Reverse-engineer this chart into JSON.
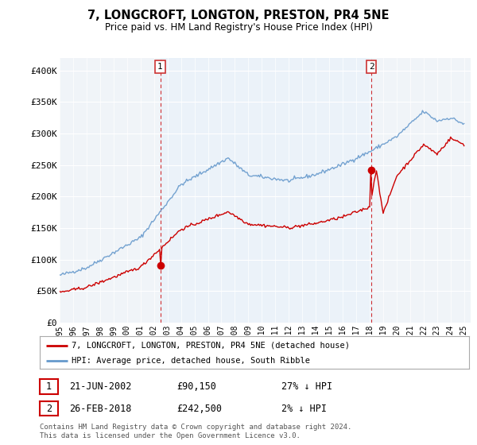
{
  "title": "7, LONGCROFT, LONGTON, PRESTON, PR4 5NE",
  "subtitle": "Price paid vs. HM Land Registry's House Price Index (HPI)",
  "ylim": [
    0,
    420000
  ],
  "yticks": [
    0,
    50000,
    100000,
    150000,
    200000,
    250000,
    300000,
    350000,
    400000
  ],
  "ytick_labels": [
    "£0",
    "£50K",
    "£100K",
    "£150K",
    "£200K",
    "£250K",
    "£300K",
    "£350K",
    "£400K"
  ],
  "sale1_x": 2002.46,
  "sale1_price": 90150,
  "sale2_x": 2018.12,
  "sale2_price": 242500,
  "sale1_date_str": "21-JUN-2002",
  "sale1_price_str": "£90,150",
  "sale1_hpi_str": "27% ↓ HPI",
  "sale2_date_str": "26-FEB-2018",
  "sale2_price_str": "£242,500",
  "sale2_hpi_str": "2% ↓ HPI",
  "legend_label1": "7, LONGCROFT, LONGTON, PRESTON, PR4 5NE (detached house)",
  "legend_label2": "HPI: Average price, detached house, South Ribble",
  "footnote": "Contains HM Land Registry data © Crown copyright and database right 2024.\nThis data is licensed under the Open Government Licence v3.0.",
  "hpi_color": "#6699cc",
  "sale_color": "#cc0000",
  "shade_color": "#ddeeff",
  "background_color": "#ffffff"
}
